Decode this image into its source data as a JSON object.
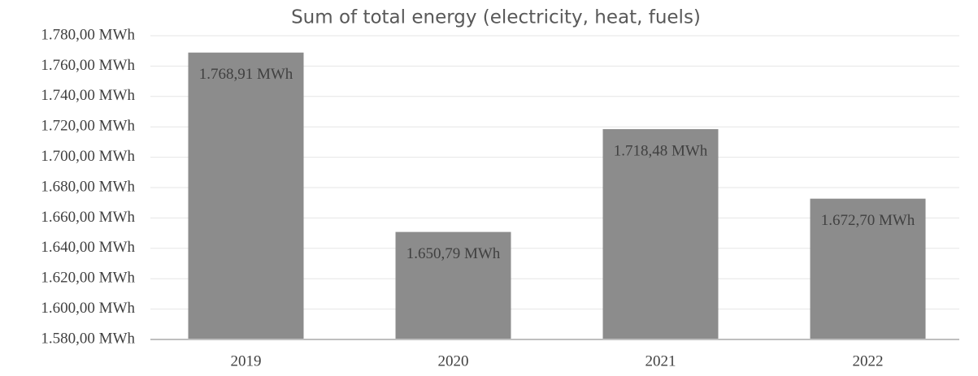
{
  "chart_data": {
    "type": "bar",
    "title": "Sum of total energy (electricity, heat, fuels)",
    "categories": [
      "2019",
      "2020",
      "2021",
      "2022"
    ],
    "values": [
      1768.91,
      1650.79,
      1718.48,
      1672.7
    ],
    "value_labels": [
      "1.768,91 MWh",
      "1.650,79 MWh",
      "1.718,48 MWh",
      "1.672,70 MWh"
    ],
    "color": "#8c8c8c",
    "ylim": [
      1580,
      1780
    ],
    "yticks": [
      {
        "value": 1580,
        "label": "1.580,00 MWh"
      },
      {
        "value": 1600,
        "label": "1.600,00 MWh"
      },
      {
        "value": 1620,
        "label": "1.620,00 MWh"
      },
      {
        "value": 1640,
        "label": "1.640,00 MWh"
      },
      {
        "value": 1660,
        "label": "1.660,00 MWh"
      },
      {
        "value": 1680,
        "label": "1.680,00 MWh"
      },
      {
        "value": 1700,
        "label": "1.700,00 MWh"
      },
      {
        "value": 1720,
        "label": "1.720,00 MWh"
      },
      {
        "value": 1740,
        "label": "1.740,00 MWh"
      },
      {
        "value": 1760,
        "label": "1.760,00 MWh"
      },
      {
        "value": 1780,
        "label": "1.780,00 MWh"
      }
    ],
    "grid": true
  }
}
